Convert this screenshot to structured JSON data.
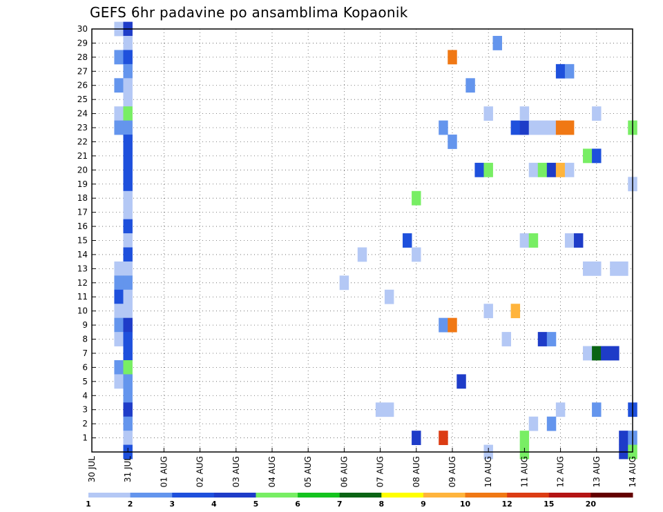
{
  "title": "GEFS 6hr padavine po ansamblima Kopaonik",
  "chart_data": {
    "type": "heatmap",
    "title": "GEFS 6hr padavine po ansamblima Kopaonik",
    "xlabel": "",
    "ylabel": "",
    "x_unit": "day",
    "xlim": [
      0,
      15
    ],
    "ylim": [
      0,
      30
    ],
    "x_ticks": [
      {
        "x": 0,
        "label": "30 JUL"
      },
      {
        "x": 1,
        "label": "31 JUL"
      },
      {
        "x": 2,
        "label": "01 AUG"
      },
      {
        "x": 3,
        "label": "02 AUG"
      },
      {
        "x": 4,
        "label": "03 AUG"
      },
      {
        "x": 5,
        "label": "04 AUG"
      },
      {
        "x": 6,
        "label": "05 AUG"
      },
      {
        "x": 7,
        "label": "06 AUG"
      },
      {
        "x": 8,
        "label": "07 AUG"
      },
      {
        "x": 9,
        "label": "08 AUG"
      },
      {
        "x": 10,
        "label": "09 AUG"
      },
      {
        "x": 11,
        "label": "10 AUG"
      },
      {
        "x": 12,
        "label": "11 AUG"
      },
      {
        "x": 13,
        "label": "12 AUG"
      },
      {
        "x": 14,
        "label": "13 AUG"
      },
      {
        "x": 15,
        "label": "14 AUG"
      }
    ],
    "y_ticks": [
      1,
      2,
      3,
      4,
      5,
      6,
      7,
      8,
      9,
      10,
      11,
      12,
      13,
      14,
      15,
      16,
      17,
      18,
      19,
      20,
      21,
      22,
      23,
      24,
      25,
      26,
      27,
      28,
      29,
      30
    ],
    "grid": true,
    "colorbar": {
      "labels": [
        "1",
        "2",
        "3",
        "4",
        "5",
        "6",
        "7",
        "8",
        "9",
        "10",
        "12",
        "15",
        "20"
      ],
      "colors": [
        "#b4c8f5",
        "#6495ed",
        "#1e50dc",
        "#1e3cc8",
        "#78ee64",
        "#14c31e",
        "#0a6414",
        "#ffff00",
        "#ffb43c",
        "#f07814",
        "#dc3c14",
        "#b41414",
        "#640000"
      ]
    },
    "cells": [
      {
        "x": 0.75,
        "y": 30,
        "c": 1
      },
      {
        "x": 1,
        "y": 30,
        "c": 4
      },
      {
        "x": 1,
        "y": 29,
        "c": 1
      },
      {
        "x": 0.75,
        "y": 28,
        "c": 2
      },
      {
        "x": 1,
        "y": 28,
        "c": 3
      },
      {
        "x": 1,
        "y": 27,
        "c": 2
      },
      {
        "x": 0.75,
        "y": 26,
        "c": 2
      },
      {
        "x": 1,
        "y": 26,
        "c": 1
      },
      {
        "x": 1,
        "y": 25,
        "c": 1
      },
      {
        "x": 0.75,
        "y": 24,
        "c": 1
      },
      {
        "x": 1,
        "y": 24,
        "c": 5
      },
      {
        "x": 0.75,
        "y": 23,
        "c": 2
      },
      {
        "x": 1,
        "y": 23,
        "c": 2
      },
      {
        "x": 1,
        "y": 22,
        "c": 3
      },
      {
        "x": 1,
        "y": 21,
        "c": 3
      },
      {
        "x": 1,
        "y": 20,
        "c": 3
      },
      {
        "x": 1,
        "y": 19,
        "c": 3
      },
      {
        "x": 1,
        "y": 18,
        "c": 1
      },
      {
        "x": 1,
        "y": 17,
        "c": 1
      },
      {
        "x": 1,
        "y": 16,
        "c": 3
      },
      {
        "x": 1,
        "y": 15,
        "c": 1
      },
      {
        "x": 1,
        "y": 14,
        "c": 3
      },
      {
        "x": 1,
        "y": 13,
        "c": 1
      },
      {
        "x": 0.75,
        "y": 13,
        "c": 1
      },
      {
        "x": 0.75,
        "y": 12,
        "c": 2
      },
      {
        "x": 1,
        "y": 12,
        "c": 2
      },
      {
        "x": 0.75,
        "y": 11,
        "c": 3
      },
      {
        "x": 1,
        "y": 11,
        "c": 1
      },
      {
        "x": 0.75,
        "y": 10,
        "c": 1
      },
      {
        "x": 1,
        "y": 10,
        "c": 1
      },
      {
        "x": 0.75,
        "y": 9,
        "c": 2
      },
      {
        "x": 1,
        "y": 9,
        "c": 4
      },
      {
        "x": 0.75,
        "y": 8,
        "c": 1
      },
      {
        "x": 1,
        "y": 8,
        "c": 3
      },
      {
        "x": 1,
        "y": 7,
        "c": 3
      },
      {
        "x": 0.75,
        "y": 6,
        "c": 2
      },
      {
        "x": 1,
        "y": 6,
        "c": 5
      },
      {
        "x": 0.75,
        "y": 5,
        "c": 1
      },
      {
        "x": 1,
        "y": 5,
        "c": 2
      },
      {
        "x": 1,
        "y": 4,
        "c": 2
      },
      {
        "x": 1,
        "y": 3,
        "c": 4
      },
      {
        "x": 1,
        "y": 2,
        "c": 2
      },
      {
        "x": 1,
        "y": 1,
        "c": 1
      },
      {
        "x": 1,
        "y": 0,
        "c": 3
      },
      {
        "x": 7,
        "y": 12,
        "c": 1
      },
      {
        "x": 7.5,
        "y": 14,
        "c": 1
      },
      {
        "x": 8,
        "y": 3,
        "c": 1
      },
      {
        "x": 8.25,
        "y": 3,
        "c": 1
      },
      {
        "x": 8.25,
        "y": 11,
        "c": 1
      },
      {
        "x": 8.75,
        "y": 15,
        "c": 3
      },
      {
        "x": 9,
        "y": 1,
        "c": 4
      },
      {
        "x": 9,
        "y": 14,
        "c": 1
      },
      {
        "x": 9,
        "y": 18,
        "c": 5
      },
      {
        "x": 9.75,
        "y": 1,
        "c": 11
      },
      {
        "x": 9.75,
        "y": 9,
        "c": 2
      },
      {
        "x": 10,
        "y": 9,
        "c": 10
      },
      {
        "x": 9.75,
        "y": 23,
        "c": 2
      },
      {
        "x": 10,
        "y": 28,
        "c": 10
      },
      {
        "x": 10,
        "y": 22,
        "c": 2
      },
      {
        "x": 10.25,
        "y": 5,
        "c": 4
      },
      {
        "x": 10.5,
        "y": 26,
        "c": 2
      },
      {
        "x": 10.75,
        "y": 20,
        "c": 3
      },
      {
        "x": 11,
        "y": 20,
        "c": 5
      },
      {
        "x": 11,
        "y": 24,
        "c": 1
      },
      {
        "x": 11,
        "y": 10,
        "c": 1
      },
      {
        "x": 11,
        "y": 0,
        "c": 1
      },
      {
        "x": 11.25,
        "y": 29,
        "c": 2
      },
      {
        "x": 11.5,
        "y": 8,
        "c": 1
      },
      {
        "x": 11.75,
        "y": 10,
        "c": 9
      },
      {
        "x": 11.75,
        "y": 23,
        "c": 3
      },
      {
        "x": 12,
        "y": 23,
        "c": 4
      },
      {
        "x": 12.25,
        "y": 23,
        "c": 1
      },
      {
        "x": 12.5,
        "y": 23,
        "c": 1
      },
      {
        "x": 12.75,
        "y": 23,
        "c": 1
      },
      {
        "x": 13,
        "y": 23,
        "c": 10
      },
      {
        "x": 13.25,
        "y": 23,
        "c": 10
      },
      {
        "x": 12,
        "y": 24,
        "c": 1
      },
      {
        "x": 12,
        "y": 15,
        "c": 1
      },
      {
        "x": 12.25,
        "y": 15,
        "c": 5
      },
      {
        "x": 12,
        "y": 1,
        "c": 5
      },
      {
        "x": 12,
        "y": 0,
        "c": 5
      },
      {
        "x": 12.25,
        "y": 2,
        "c": 1
      },
      {
        "x": 12.25,
        "y": 20,
        "c": 1
      },
      {
        "x": 12.5,
        "y": 20,
        "c": 5
      },
      {
        "x": 12.75,
        "y": 20,
        "c": 4
      },
      {
        "x": 13,
        "y": 20,
        "c": 9
      },
      {
        "x": 13.25,
        "y": 20,
        "c": 1
      },
      {
        "x": 12.5,
        "y": 8,
        "c": 4
      },
      {
        "x": 12.75,
        "y": 8,
        "c": 2
      },
      {
        "x": 12.75,
        "y": 2,
        "c": 2
      },
      {
        "x": 13,
        "y": 3,
        "c": 1
      },
      {
        "x": 13,
        "y": 27,
        "c": 3
      },
      {
        "x": 13.25,
        "y": 27,
        "c": 2
      },
      {
        "x": 13.25,
        "y": 15,
        "c": 1
      },
      {
        "x": 13.5,
        "y": 15,
        "c": 4
      },
      {
        "x": 13.75,
        "y": 7,
        "c": 1
      },
      {
        "x": 14,
        "y": 7,
        "c": 7
      },
      {
        "x": 14.25,
        "y": 7,
        "c": 4
      },
      {
        "x": 14.5,
        "y": 7,
        "c": 4
      },
      {
        "x": 13.75,
        "y": 13,
        "c": 1
      },
      {
        "x": 14,
        "y": 13,
        "c": 1
      },
      {
        "x": 13.75,
        "y": 21,
        "c": 5
      },
      {
        "x": 14,
        "y": 21,
        "c": 3
      },
      {
        "x": 14,
        "y": 24,
        "c": 1
      },
      {
        "x": 14,
        "y": 3,
        "c": 2
      },
      {
        "x": 14.5,
        "y": 13,
        "c": 1
      },
      {
        "x": 14.75,
        "y": 13,
        "c": 1
      },
      {
        "x": 14.75,
        "y": 1,
        "c": 4
      },
      {
        "x": 15,
        "y": 1,
        "c": 2
      },
      {
        "x": 14.75,
        "y": 0,
        "c": 4
      },
      {
        "x": 15,
        "y": 0,
        "c": 5
      },
      {
        "x": 15,
        "y": 3,
        "c": 3
      },
      {
        "x": 15,
        "y": 19,
        "c": 1
      },
      {
        "x": 15,
        "y": 23,
        "c": 5
      }
    ]
  }
}
